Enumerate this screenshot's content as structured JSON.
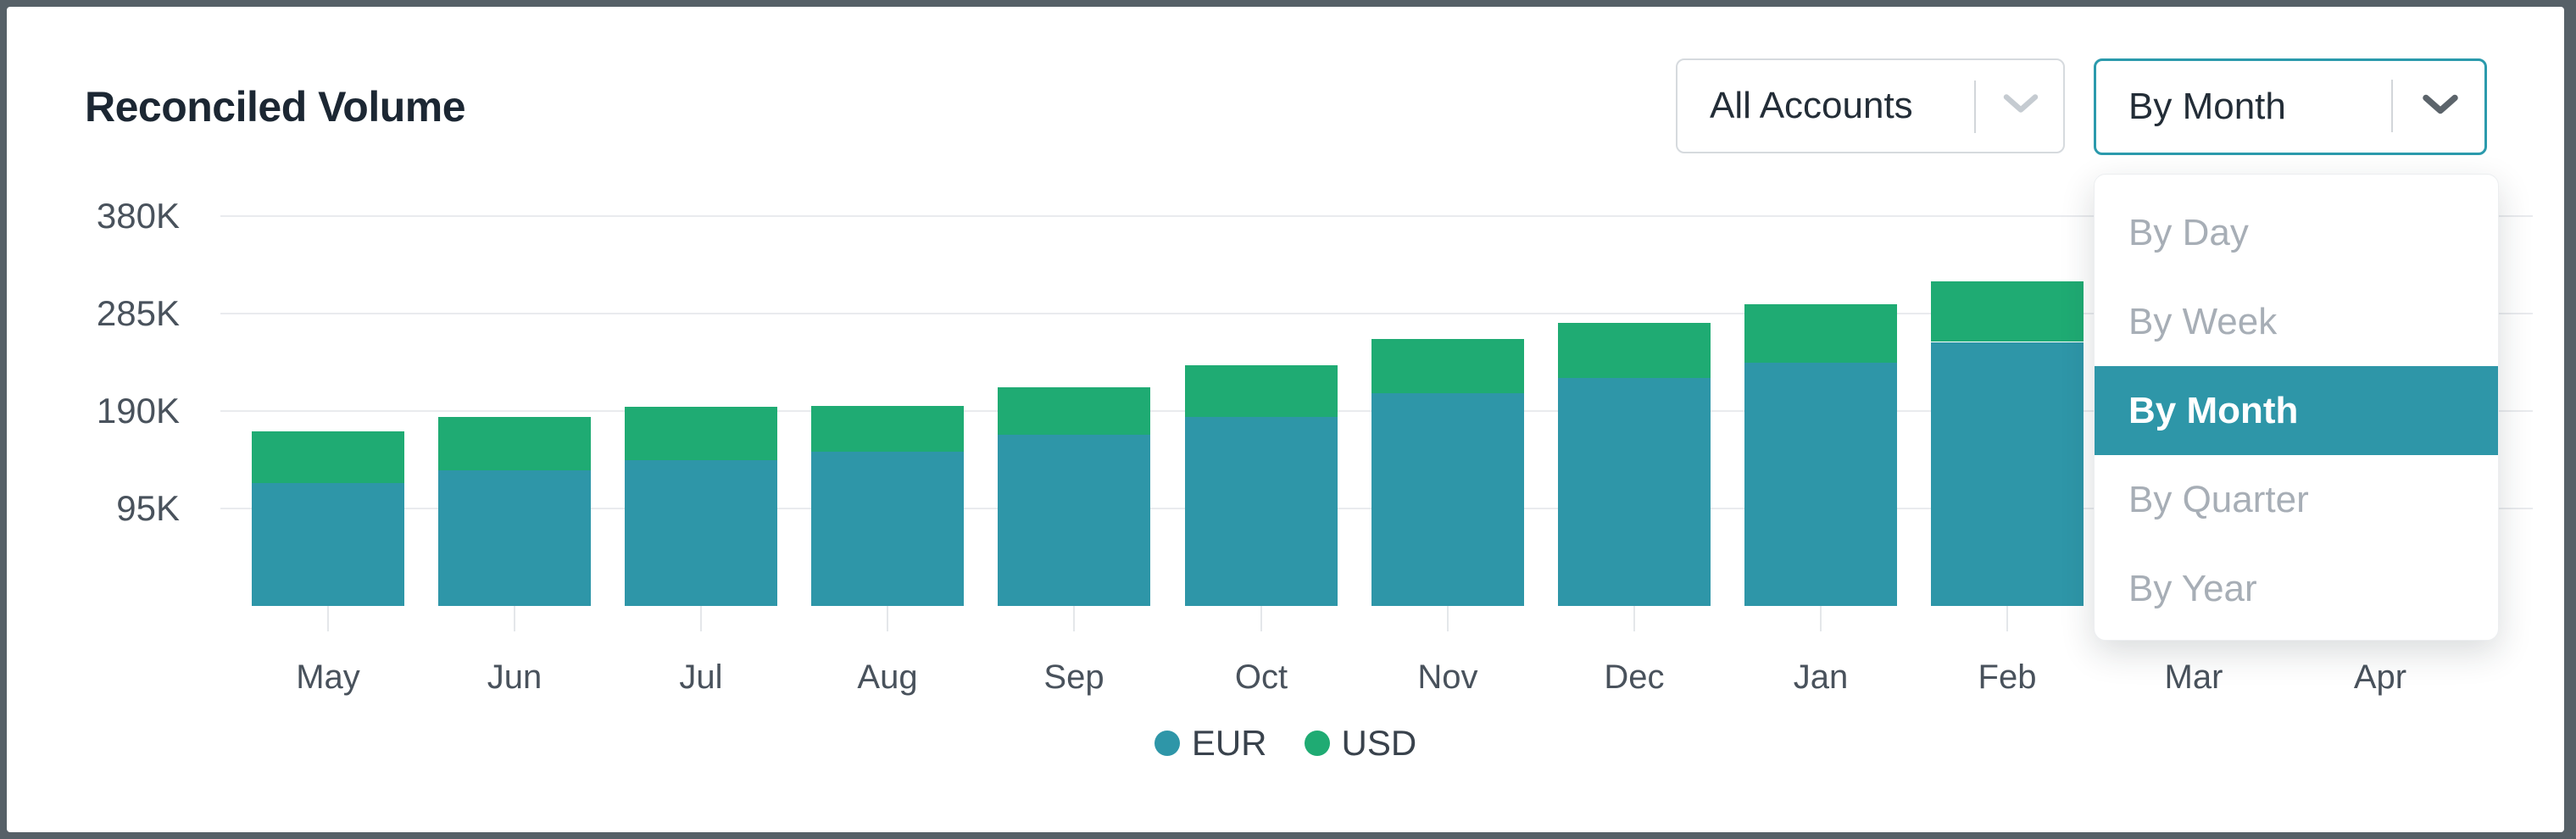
{
  "header": {
    "title": "Reconciled Volume"
  },
  "controls": {
    "accounts_dropdown": {
      "value": "All Accounts"
    },
    "period_dropdown": {
      "value": "By Month"
    },
    "period_menu": {
      "open": true,
      "options": [
        {
          "label": "By Day",
          "selected": false
        },
        {
          "label": "By Week",
          "selected": false
        },
        {
          "label": "By Month",
          "selected": true
        },
        {
          "label": "By Quarter",
          "selected": false
        },
        {
          "label": "By Year",
          "selected": false
        }
      ]
    }
  },
  "colors": {
    "accent_teal": "#2E96A8",
    "accent_green": "#1FAB73",
    "active_border": "#2B9AAC",
    "frame": "#566067"
  },
  "chart_data": {
    "type": "bar",
    "stacked": true,
    "title": "Reconciled Volume",
    "categories": [
      "May",
      "Jun",
      "Jul",
      "Aug",
      "Sep",
      "Oct",
      "Nov",
      "Dec",
      "Jan",
      "Feb",
      "Mar",
      "Apr"
    ],
    "series": [
      {
        "name": "EUR",
        "color": "#2E96A8",
        "values_thousands": [
          120,
          132,
          142,
          150,
          167,
          185,
          207,
          222,
          237,
          257,
          null,
          null
        ]
      },
      {
        "name": "USD",
        "color": "#1FAB73",
        "values_thousands": [
          50,
          52,
          52,
          45,
          46,
          50,
          53,
          54,
          57,
          59,
          null,
          null
        ]
      }
    ],
    "totals_thousands": [
      170,
      184,
      194,
      195,
      213,
      235,
      260,
      276,
      294,
      316,
      null,
      null
    ],
    "y_axis": {
      "unit": "K",
      "ticks": [
        {
          "label": "95K",
          "value_thousands": 95
        },
        {
          "label": "190K",
          "value_thousands": 190
        },
        {
          "label": "285K",
          "value_thousands": 285
        },
        {
          "label": "380K",
          "value_thousands": 380
        }
      ]
    },
    "ylim_thousands": [
      0,
      420
    ],
    "grid": "horizontal",
    "legend": {
      "position": "bottom",
      "items": [
        "EUR",
        "USD"
      ]
    },
    "note": "Mar and Apr bars are hidden behind the open By Month dropdown menu"
  }
}
